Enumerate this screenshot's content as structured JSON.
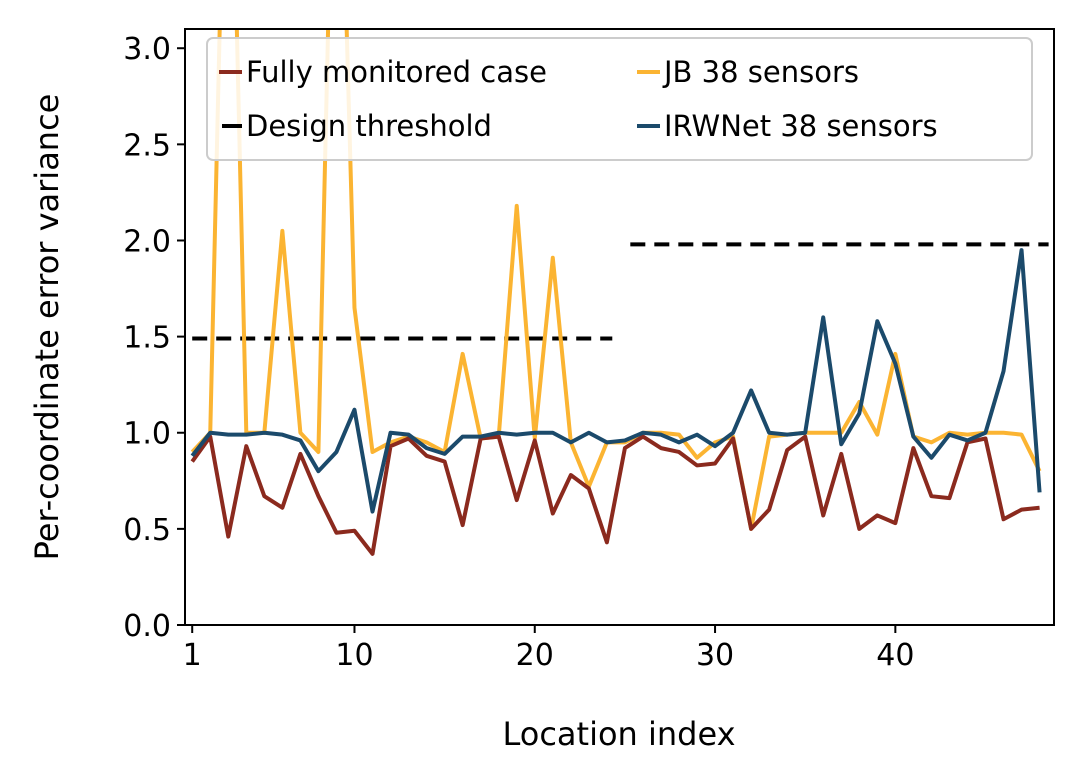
{
  "chart_data": {
    "type": "line",
    "xlabel": "Location index",
    "ylabel": "Per-coordinate error variance",
    "xlim": [
      0.6,
      48.8
    ],
    "ylim": [
      0,
      3.1
    ],
    "x_ticks": [
      1,
      10,
      20,
      30,
      40
    ],
    "y_ticks": [
      0.0,
      0.5,
      1.0,
      1.5,
      2.0,
      2.5,
      3.0
    ],
    "y_tick_labels": [
      "0.0",
      "0.5",
      "1.0",
      "1.5",
      "2.0",
      "2.5",
      "3.0"
    ],
    "grid": false,
    "legend_position": "top",
    "legend_entries": [
      "Fully monitored case",
      "JB 38 sensors",
      "Design threshold",
      "IRWNet 38 sensors"
    ],
    "thresholds": [
      {
        "x_start": 1,
        "x_end": 24.3,
        "y": 1.49
      },
      {
        "x_start": 25.3,
        "x_end": 48.5,
        "y": 1.98
      }
    ],
    "series": [
      {
        "name": "JB 38 sensors",
        "color": "#FBB432",
        "x": [
          1,
          2,
          3,
          4,
          5,
          6,
          7,
          8,
          9,
          10,
          11,
          12,
          13,
          14,
          15,
          16,
          17,
          18,
          19,
          20,
          21,
          22,
          23,
          24,
          25,
          26,
          27,
          28,
          29,
          30,
          31,
          32,
          33,
          34,
          35,
          36,
          37,
          38,
          39,
          40,
          41,
          42,
          43,
          44,
          45,
          46,
          47,
          48
        ],
        "values": [
          0.9,
          1.0,
          5.0,
          1.0,
          1.0,
          2.05,
          1.0,
          0.9,
          5.0,
          1.65,
          0.9,
          0.95,
          0.98,
          0.95,
          0.9,
          1.41,
          0.97,
          0.98,
          2.18,
          0.97,
          1.91,
          0.95,
          0.72,
          0.95,
          0.95,
          1.0,
          1.0,
          0.99,
          0.87,
          0.95,
          0.98,
          0.5,
          0.98,
          0.99,
          1.0,
          1.0,
          1.0,
          1.16,
          0.99,
          1.41,
          0.98,
          0.95,
          1.0,
          0.99,
          1.0,
          1.0,
          0.99,
          0.8
        ]
      },
      {
        "name": "Fully monitored case",
        "color": "#8B2A1E",
        "x": [
          1,
          2,
          3,
          4,
          5,
          6,
          7,
          8,
          9,
          10,
          11,
          12,
          13,
          14,
          15,
          16,
          17,
          18,
          19,
          20,
          21,
          22,
          23,
          24,
          25,
          26,
          27,
          28,
          29,
          30,
          31,
          32,
          33,
          34,
          35,
          36,
          37,
          38,
          39,
          40,
          41,
          42,
          43,
          44,
          45,
          46,
          47,
          48
        ],
        "values": [
          0.85,
          0.98,
          0.46,
          0.93,
          0.67,
          0.61,
          0.89,
          0.67,
          0.48,
          0.49,
          0.37,
          0.93,
          0.97,
          0.88,
          0.85,
          0.52,
          0.97,
          0.98,
          0.65,
          0.96,
          0.58,
          0.78,
          0.71,
          0.43,
          0.92,
          0.98,
          0.92,
          0.9,
          0.83,
          0.84,
          0.97,
          0.5,
          0.6,
          0.91,
          0.98,
          0.57,
          0.89,
          0.5,
          0.57,
          0.53,
          0.92,
          0.67,
          0.66,
          0.95,
          0.97,
          0.55,
          0.6,
          0.61
        ]
      },
      {
        "name": "IRWNet 38 sensors",
        "color": "#1B4A6B",
        "x": [
          1,
          2,
          3,
          4,
          5,
          6,
          7,
          8,
          9,
          10,
          11,
          12,
          13,
          14,
          15,
          16,
          17,
          18,
          19,
          20,
          21,
          22,
          23,
          24,
          25,
          26,
          27,
          28,
          29,
          30,
          31,
          32,
          33,
          34,
          35,
          36,
          37,
          38,
          39,
          40,
          41,
          42,
          43,
          44,
          45,
          46,
          47,
          48
        ],
        "values": [
          0.88,
          1.0,
          0.99,
          0.99,
          1.0,
          0.99,
          0.96,
          0.8,
          0.9,
          1.12,
          0.59,
          1.0,
          0.99,
          0.92,
          0.89,
          0.98,
          0.98,
          1.0,
          0.99,
          1.0,
          1.0,
          0.95,
          1.0,
          0.95,
          0.96,
          1.0,
          0.99,
          0.95,
          0.99,
          0.93,
          1.0,
          1.22,
          1.0,
          0.99,
          1.0,
          1.6,
          0.94,
          1.1,
          1.58,
          1.36,
          0.98,
          0.87,
          0.99,
          0.96,
          1.0,
          1.32,
          1.95,
          0.69
        ]
      }
    ]
  }
}
